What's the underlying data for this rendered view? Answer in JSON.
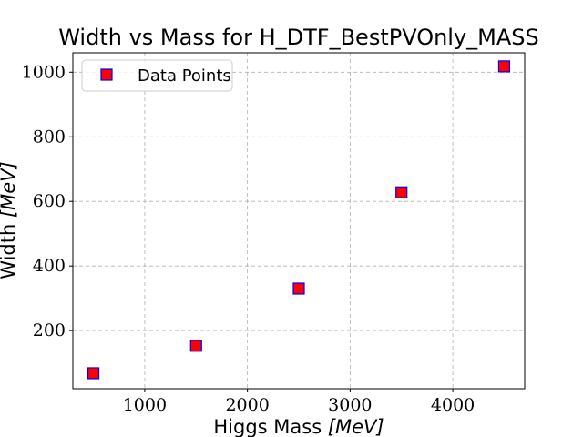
{
  "chart_data": {
    "type": "scatter",
    "title": "Width vs Mass for H_DTF_BestPVOnly_MASS",
    "xlabel_text": "Higgs Mass ",
    "xlabel_unit": "[MeV]",
    "ylabel_text": "Width ",
    "ylabel_unit": "[MeV]",
    "xlim": [
      300,
      4700
    ],
    "ylim": [
      20,
      1060
    ],
    "x_ticks": [
      1000,
      2000,
      3000,
      4000
    ],
    "y_ticks": [
      200,
      400,
      600,
      800,
      1000
    ],
    "grid": true,
    "legend_position": "top-left",
    "series": [
      {
        "name": "Data Points",
        "marker": "square",
        "fill_color": "#ff0000",
        "edge_color": "#0000ff",
        "x": [
          500,
          1500,
          2500,
          3500,
          4500
        ],
        "y": [
          68,
          153,
          330,
          628,
          1018
        ]
      }
    ]
  }
}
